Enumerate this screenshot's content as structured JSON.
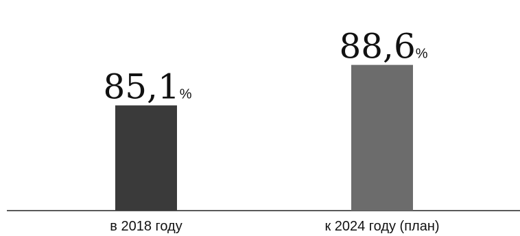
{
  "chart_data": {
    "type": "bar",
    "title": "",
    "xlabel": "",
    "ylabel": "",
    "categories": [
      "в 2018 году",
      "к 2024 году (план)"
    ],
    "values": [
      85.1,
      88.6
    ],
    "value_labels": [
      "85,1",
      "88,6"
    ],
    "unit": "%",
    "colors": [
      "#3a3a3a",
      "#6c6c6c"
    ],
    "ylim": [
      76,
      90
    ],
    "grid": false,
    "legend": "none"
  }
}
